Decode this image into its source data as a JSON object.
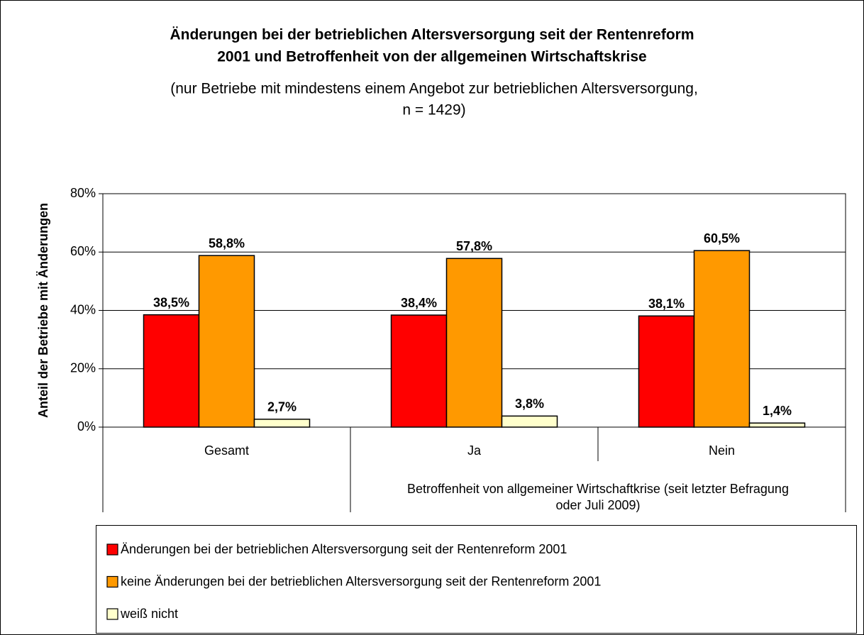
{
  "chart_data": {
    "type": "bar",
    "title": [
      "Änderungen bei der betrieblichen Altersversorgung seit der Rentenreform",
      "2001 und Betroffenheit von der allgemeinen Wirtschaftskrise"
    ],
    "subtitle": [
      "(nur Betriebe mit mindestens einem Angebot zur betrieblichen Altersversorgung,",
      "n = 1429)"
    ],
    "y_label": "Anteil der Betriebe mit Änderungen",
    "categories": [
      "Gesamt",
      "Ja",
      "Nein"
    ],
    "x_group_label": [
      "Betroffenheit von allgemeiner Wirtschaftkrise (seit letzter Befragung",
      "oder Juli 2009)"
    ],
    "series": [
      {
        "name": "Änderungen bei der betrieblichen Altersversorgung seit der Rentenreform 2001",
        "color": "#ff0000",
        "values": [
          38.5,
          38.4,
          38.1
        ],
        "value_labels": [
          "38,5%",
          "38,4%",
          "38,1%"
        ]
      },
      {
        "name": "keine Änderungen bei der betrieblichen Altersversorgung seit der Rentenreform 2001",
        "color": "#ff9900",
        "values": [
          58.8,
          57.8,
          60.5
        ],
        "value_labels": [
          "58,8%",
          "57,8%",
          "60,5%"
        ]
      },
      {
        "name": "weiß nicht",
        "color": "#ffffcc",
        "values": [
          2.7,
          3.8,
          1.4
        ],
        "value_labels": [
          "2,7%",
          "3,8%",
          "1,4%"
        ]
      }
    ],
    "ylim": [
      0,
      80
    ],
    "yticks": [
      {
        "value": 0,
        "label": "0%"
      },
      {
        "value": 20,
        "label": "20%"
      },
      {
        "value": 40,
        "label": "40%"
      },
      {
        "value": 60,
        "label": "60%"
      },
      {
        "value": 80,
        "label": "80%"
      }
    ],
    "grid": true
  }
}
